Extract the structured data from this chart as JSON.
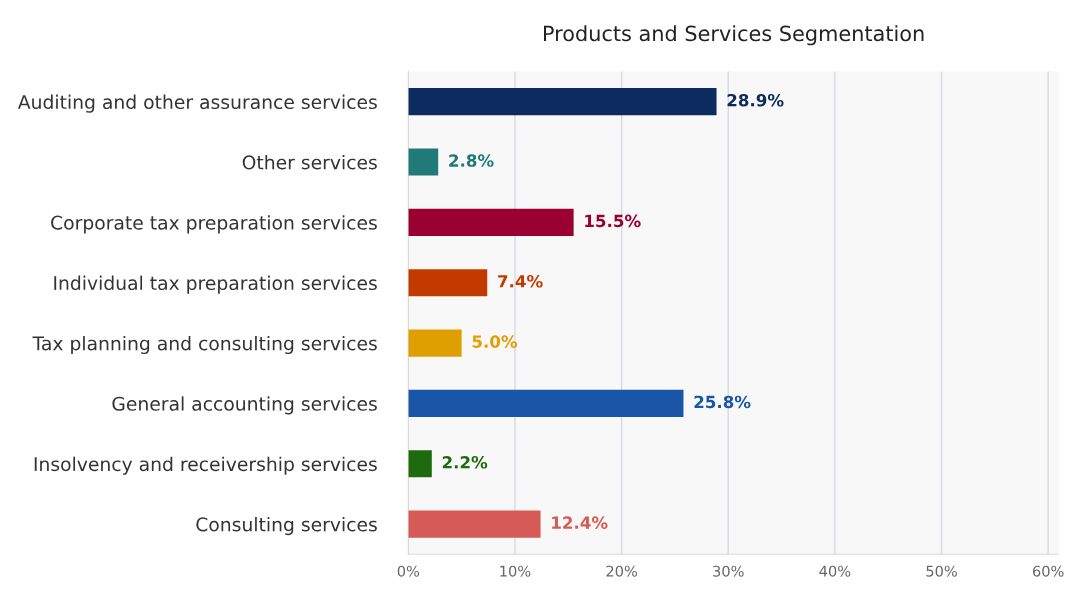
{
  "chart_data": {
    "type": "bar",
    "orientation": "horizontal",
    "title": "Products and Services Segmentation",
    "categories": [
      "Auditing and other assurance services",
      "Other services",
      "Corporate tax preparation services",
      "Individual tax preparation services",
      "Tax planning and consulting services",
      "General accounting services",
      "Insolvency and receivership services",
      "Consulting services"
    ],
    "values": [
      28.9,
      2.8,
      15.5,
      7.4,
      5.0,
      25.8,
      2.2,
      12.4
    ],
    "colors": [
      "#0d2b5e",
      "#1f7a78",
      "#9b0033",
      "#c23a00",
      "#e09f00",
      "#1a56a8",
      "#1f6a0f",
      "#d65a55"
    ],
    "value_labels": [
      "28.9%",
      "2.8%",
      "15.5%",
      "7.4%",
      "5.0%",
      "25.8%",
      "2.2%",
      "12.4%"
    ],
    "xlim": [
      0,
      61
    ],
    "xticks": [
      {
        "value": 0,
        "label": "0%"
      },
      {
        "value": 10,
        "label": "10%"
      },
      {
        "value": 20,
        "label": "20%"
      },
      {
        "value": 30,
        "label": "30%"
      },
      {
        "value": 40,
        "label": "40%"
      },
      {
        "value": 50,
        "label": "50%"
      },
      {
        "value": 60,
        "label": "60%"
      }
    ],
    "grid": "x",
    "legend": false
  }
}
